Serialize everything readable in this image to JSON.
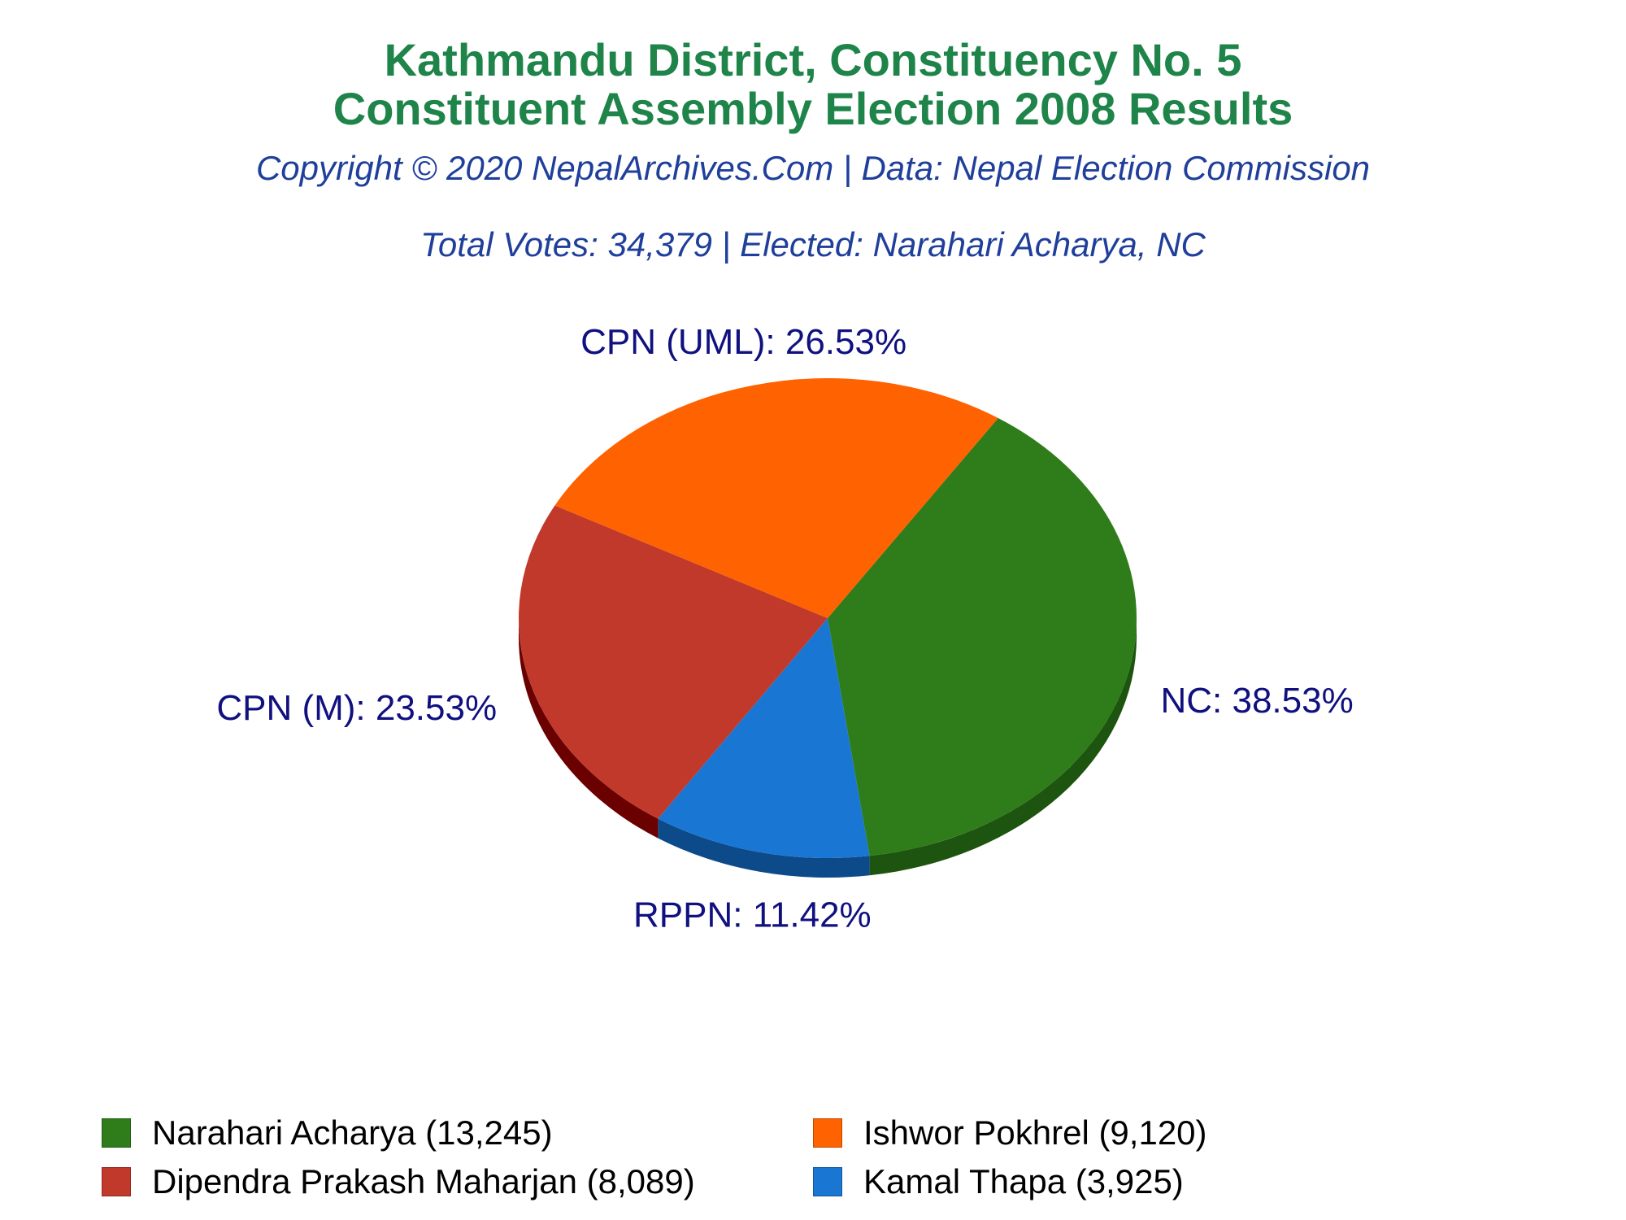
{
  "chart_data": {
    "type": "pie",
    "title": "Kathmandu District, Constituency No. 5",
    "title_line2": "Constituent Assembly Election 2008 Results",
    "subtitle": "Copyright © 2020 NepalArchives.Com | Data: Nepal Election Commission",
    "summary": "Total Votes: 34,379 | Elected: Narahari Acharya, NC",
    "legend_placement": "bottom",
    "slices": [
      {
        "party": "NC",
        "candidate": "Narahari Acharya",
        "votes": 13245,
        "percent": 38.53,
        "label": "NC: 38.53%",
        "legend_label": "Narahari Acharya (13,245)",
        "color": "#2e7d1a",
        "side_color": "#1d5410"
      },
      {
        "party": "RPPN",
        "candidate": "Kamal Thapa",
        "votes": 3925,
        "percent": 11.42,
        "label": "RPPN: 11.42%",
        "legend_label": "Kamal Thapa (3,925)",
        "color": "#1976d2",
        "side_color": "#0d4a8a"
      },
      {
        "party": "CPN (M)",
        "candidate": "Dipendra Prakash Maharjan",
        "votes": 8089,
        "percent": 23.53,
        "label": "CPN (M): 23.53%",
        "legend_label": "Dipendra Prakash Maharjan (8,089)",
        "color": "#c0392b",
        "side_color": "#6b0000"
      },
      {
        "party": "CPN (UML)",
        "candidate": "Ishwor Pokhrel",
        "votes": 9120,
        "percent": 26.53,
        "label": "CPN (UML): 26.53%",
        "legend_label": "Ishwor Pokhrel (9,120)",
        "color": "#ff6200",
        "side_color": "#a30000"
      }
    ]
  }
}
